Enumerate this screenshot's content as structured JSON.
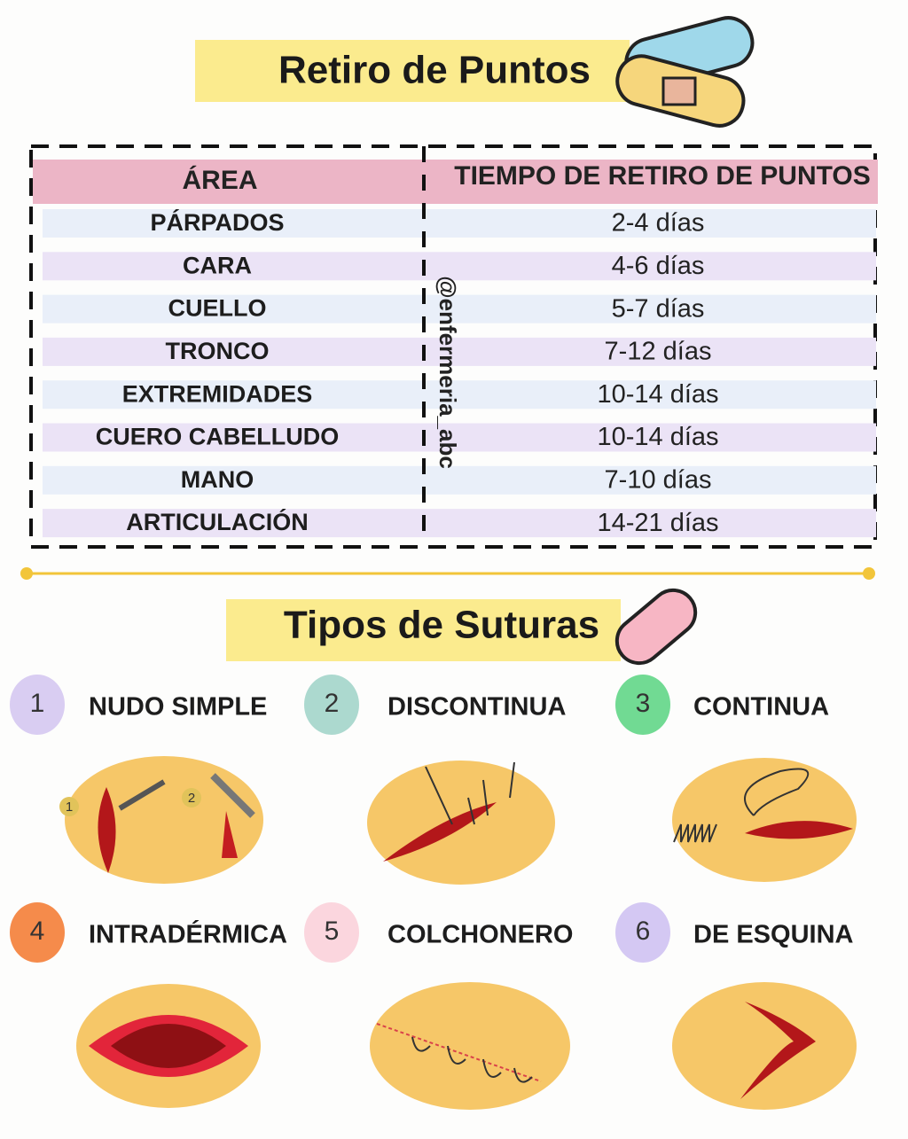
{
  "header": {
    "title": "Retiro de Puntos"
  },
  "table": {
    "columns": [
      "ÁREA",
      "TIEMPO DE RETIRO DE PUNTOS"
    ],
    "rows": [
      [
        "PÁRPADOS",
        "2-4 días"
      ],
      [
        "CARA",
        "4-6 días"
      ],
      [
        "CUELLO",
        "5-7 días"
      ],
      [
        "TRONCO",
        "7-12 días"
      ],
      [
        "EXTREMIDADES",
        "10-14 días"
      ],
      [
        "CUERO CABELLUDO",
        "10-14 días"
      ],
      [
        "MANO",
        "7-10 días"
      ],
      [
        "ARTICULACIÓN",
        "14-21 días"
      ]
    ]
  },
  "watermark": "@enfermeria_abc",
  "section": {
    "title": "Tipos de Suturas"
  },
  "sutures": [
    {
      "number": 1,
      "name": "NUDO SIMPLE",
      "color": "#d9cdf2"
    },
    {
      "number": 2,
      "name": "DISCONTINUA",
      "color": "#acd9cf"
    },
    {
      "number": 3,
      "name": "CONTINUA",
      "color": "#71da93"
    },
    {
      "number": 4,
      "name": "INTRADÉRMICA",
      "color": "#f58b4b"
    },
    {
      "number": 5,
      "name": "COLCHONERO",
      "color": "#fbd6de"
    },
    {
      "number": 6,
      "name": "DE ESQUINA",
      "color": "#d4c8f3"
    }
  ],
  "illustration_labels": [
    "1",
    "2"
  ]
}
